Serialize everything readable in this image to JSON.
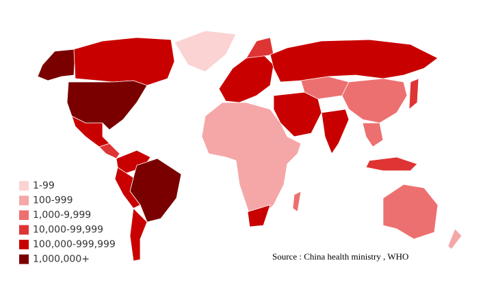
{
  "legend": [
    {
      "label": "1-99",
      "color": "#fbd3d3"
    },
    {
      "label": "100-999",
      "color": "#f5a7a7"
    },
    {
      "label": "1,000-9,999",
      "color": "#ed7070"
    },
    {
      "label": "10,000-99,999",
      "color": "#df3434"
    },
    {
      "label": "100,000-999,999",
      "color": "#c80000"
    },
    {
      "label": "1,000,000+",
      "color": "#7a0000"
    }
  ],
  "source": "Source : China health ministry , WHO"
}
